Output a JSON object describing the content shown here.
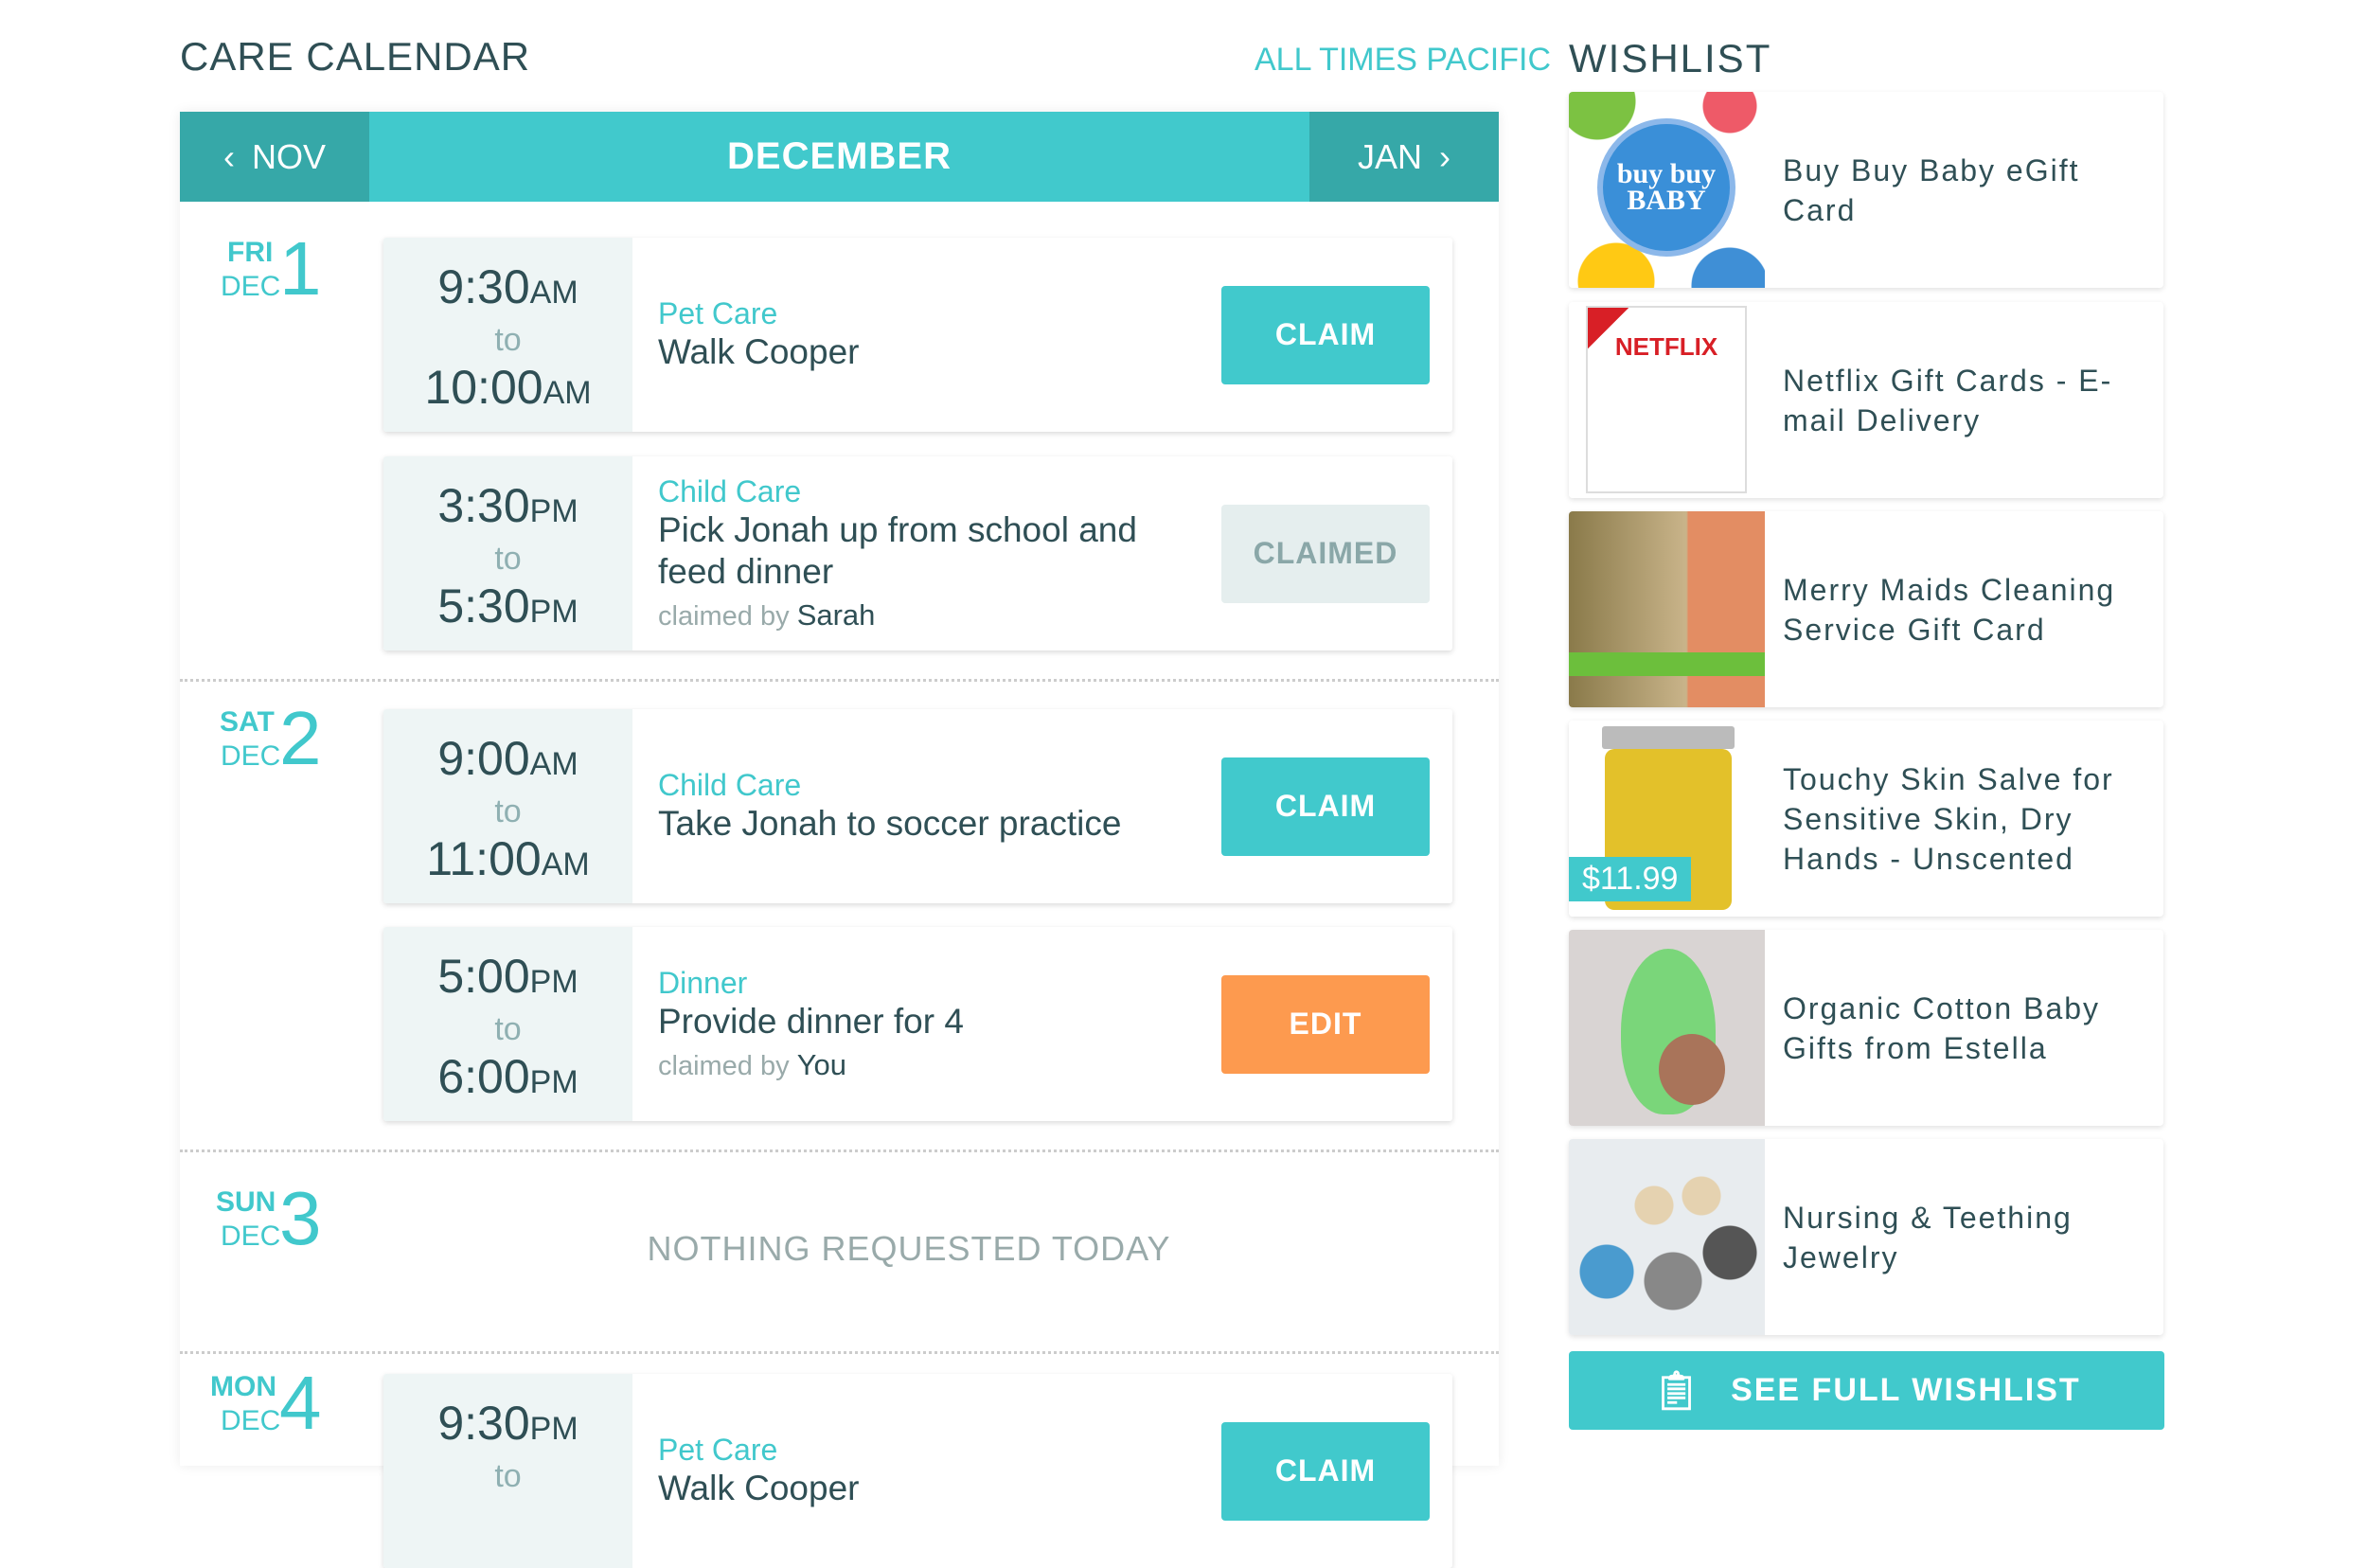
{
  "calendar": {
    "title": "CARE CALENDAR",
    "timezone": "ALL TIMES PACIFIC",
    "prev": "NOV",
    "month": "DECEMBER",
    "next": "JAN",
    "days": [
      {
        "dow": "FRI",
        "mon": "DEC",
        "num": "1"
      },
      {
        "dow": "SAT",
        "mon": "DEC",
        "num": "2"
      },
      {
        "dow": "SUN",
        "mon": "DEC",
        "num": "3",
        "empty": "NOTHING REQUESTED TODAY"
      },
      {
        "dow": "MON",
        "mon": "DEC",
        "num": "4"
      }
    ],
    "events": [
      {
        "start": "9:30",
        "start_ampm": "AM",
        "to": "to",
        "end": "10:00",
        "end_ampm": "AM",
        "category": "Pet Care",
        "title": "Walk Cooper",
        "action": "CLAIM"
      },
      {
        "start": "3:30",
        "start_ampm": "PM",
        "to": "to",
        "end": "5:30",
        "end_ampm": "PM",
        "category": "Child Care",
        "title": "Pick Jonah up from school and feed dinner",
        "claimed_by_label": "claimed by",
        "claimed_by": "Sarah",
        "action": "CLAIMED"
      },
      {
        "start": "9:00",
        "start_ampm": "AM",
        "to": "to",
        "end": "11:00",
        "end_ampm": "AM",
        "category": "Child Care",
        "title": "Take Jonah to soccer practice",
        "action": "CLAIM"
      },
      {
        "start": "5:00",
        "start_ampm": "PM",
        "to": "to",
        "end": "6:00",
        "end_ampm": "PM",
        "category": "Dinner",
        "title": "Provide dinner for 4",
        "claimed_by_label": "claimed by",
        "claimed_by": "You",
        "action": "EDIT"
      },
      {
        "start": "9:30",
        "start_ampm": "PM",
        "to": "to",
        "category": "Pet Care",
        "title": "Walk Cooper",
        "action": "CLAIM"
      }
    ]
  },
  "wishlist": {
    "title": "WISHLIST",
    "items": [
      {
        "name": "Buy Buy Baby eGift Card",
        "logo": "buy buy BABY"
      },
      {
        "name": "Netflix Gift Cards - E-mail Delivery",
        "logo": "NETFLIX"
      },
      {
        "name": "Merry Maids Cleaning Service Gift Card"
      },
      {
        "name": "Touchy Skin Salve for Sensitive Skin, Dry Hands - Unscented",
        "price": "$11.99"
      },
      {
        "name": "Organic Cotton Baby Gifts from Estella"
      },
      {
        "name": "Nursing & Teething Jewelry"
      }
    ],
    "see_all": "SEE FULL WISHLIST"
  },
  "colors": {
    "accent": "#41c9cc",
    "header_dark": "#36a8a8",
    "edit": "#fd9a4f",
    "text": "#2f4f55"
  }
}
